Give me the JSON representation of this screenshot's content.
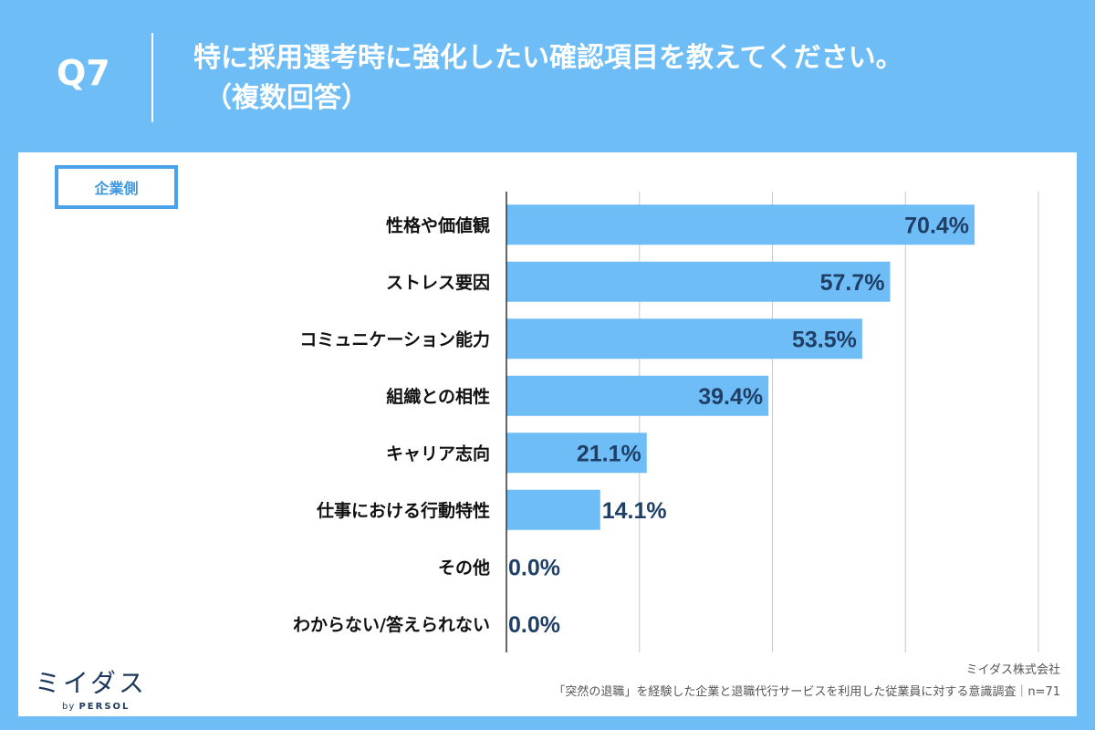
{
  "header": {
    "question_number": "Q7",
    "title_line1": "特に採用選考時に強化したい確認項目を教えてください。",
    "title_line2": "（複数回答）"
  },
  "segment_label": "企業側",
  "chart_data": {
    "type": "bar",
    "orientation": "horizontal",
    "categories": [
      "性格や価値観",
      "ストレス要因",
      "コミュニケーション能力",
      "組織との相性",
      "キャリア志向",
      "仕事における行動特性",
      "その他",
      "わからない/答えられない"
    ],
    "values": [
      70.4,
      57.7,
      53.5,
      39.4,
      21.1,
      14.1,
      0.0,
      0.0
    ],
    "value_labels": [
      "70.4%",
      "57.7%",
      "53.5%",
      "39.4%",
      "21.1%",
      "14.1%",
      "0.0%",
      "0.0%"
    ],
    "xlim": [
      0,
      80
    ],
    "grid": true,
    "gridline_values": [
      20,
      40,
      60,
      80
    ],
    "bar_color": "#6fbdf7",
    "value_label_color": "#1f3f66"
  },
  "footer": {
    "company": "ミイダス株式会社",
    "source": "「突然の退職」を経験した企業と退職代行サービスを利用した従業員に対する意識調査｜n=71"
  },
  "logo": {
    "name": "ミイダス",
    "by": "by",
    "brand": "PERSOL"
  },
  "colors": {
    "background": "#6fbdf7",
    "panel": "#ffffff",
    "accent": "#4aa3ea",
    "text_dark": "#111111"
  }
}
